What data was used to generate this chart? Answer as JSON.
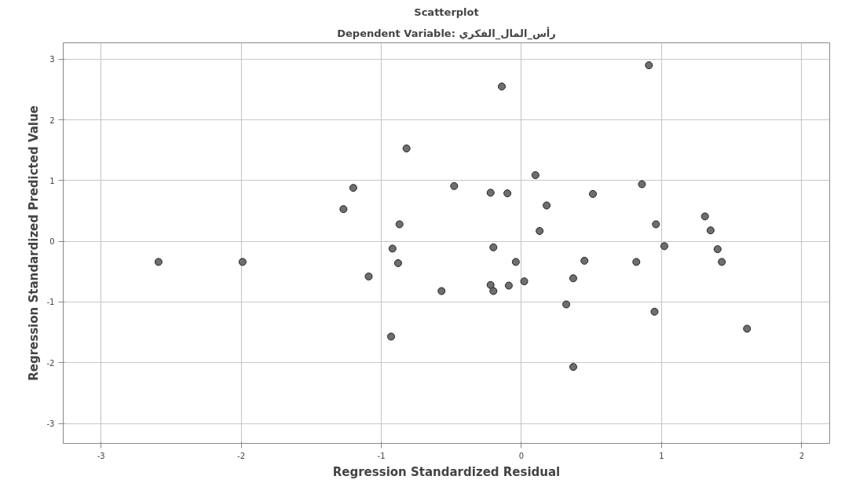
{
  "chart_data": {
    "type": "scatter",
    "title": "Scatterplot",
    "subtitle": "Dependent Variable: رأس_المال_الفكري",
    "xlabel": "Regression Standardized Residual",
    "ylabel": "Regression Standardized Predicted Value",
    "series": [
      {
        "color": "#6e6e6e",
        "x": [
          -2.59,
          -1.99,
          -0.82,
          -1.2,
          -1.27,
          -0.87,
          -0.92,
          -0.88,
          -1.09,
          -0.57,
          -0.93,
          -0.14,
          0.91,
          -0.48,
          -0.22,
          -0.1,
          0.1,
          0.18,
          0.51,
          0.86,
          0.13,
          0.96,
          1.02,
          1.31,
          1.35,
          1.4,
          1.43,
          -0.2,
          -0.04,
          0.45,
          0.82,
          0.37,
          0.02,
          -0.22,
          -0.2,
          -0.09,
          0.32,
          0.95,
          1.61,
          0.37
        ],
        "values": [
          -0.34,
          -0.34,
          1.53,
          0.88,
          0.53,
          0.28,
          -0.12,
          -0.36,
          -0.58,
          -0.82,
          -1.57,
          2.55,
          2.9,
          0.91,
          0.8,
          0.79,
          1.09,
          0.59,
          0.78,
          0.94,
          0.17,
          0.28,
          -0.08,
          0.41,
          0.18,
          -0.13,
          -0.34,
          -0.1,
          -0.34,
          -0.32,
          -0.34,
          -0.61,
          -0.66,
          -0.72,
          -0.82,
          -0.73,
          -1.04,
          -1.16,
          -1.44,
          -2.07
        ]
      }
    ],
    "xlim": [
      -3.27,
      2.2
    ],
    "ylim": [
      -3.33,
      3.27
    ],
    "xticks": [
      -3,
      -2,
      -1,
      0,
      1,
      2
    ],
    "yticks": [
      -3,
      -2,
      -1,
      0,
      1,
      2,
      3
    ],
    "grid": true,
    "marker": "circle"
  }
}
